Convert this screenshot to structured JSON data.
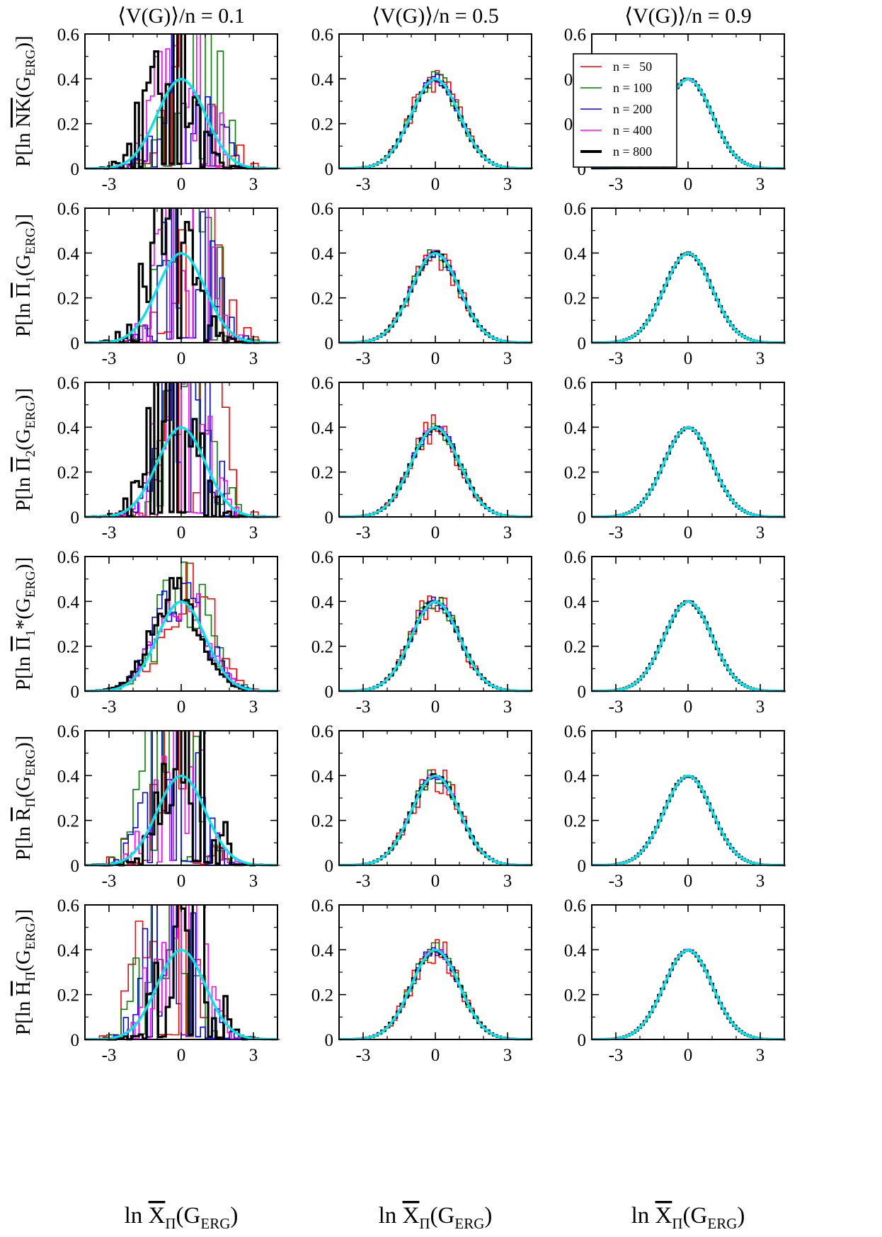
{
  "figure": {
    "column_titles": [
      "⟨V(G)⟩/n = 0.1",
      "⟨V(G)⟩/n = 0.5",
      "⟨V(G)⟩/n = 0.9"
    ],
    "row_labels": [
      {
        "pre": "P[ln ",
        "sym": "NK",
        "sub": "",
        "post": "(G",
        "gsub": "ERG",
        "end": ")]"
      },
      {
        "pre": "P[ln ",
        "sym": "Π",
        "sub": "1",
        "post": "(G",
        "gsub": "ERG",
        "end": ")]"
      },
      {
        "pre": "P[ln ",
        "sym": "Π",
        "sub": "2",
        "post": "(G",
        "gsub": "ERG",
        "end": ")]"
      },
      {
        "pre": "P[ln ",
        "sym": "Π",
        "sub": "1",
        "post": "*(G",
        "gsub": "ERG",
        "end": ")]"
      },
      {
        "pre": "P[ln ",
        "sym": "R",
        "sub": "Π",
        "post": "(G",
        "gsub": "ERG",
        "end": ")]"
      },
      {
        "pre": "P[ln ",
        "sym": "H",
        "sub": "Π",
        "post": "(G",
        "gsub": "ERG",
        "end": ")]"
      }
    ],
    "xlabel": {
      "pre": "ln ",
      "sym": "X",
      "sub": "Π",
      "post": "(G",
      "gsub": "ERG",
      "end": ")"
    }
  },
  "chart_data": {
    "type": "bar",
    "layout": {
      "rows": 6,
      "cols": 3
    },
    "xlim": [
      -4,
      4
    ],
    "ylim": [
      0,
      0.6
    ],
    "xticks": [
      -3,
      0,
      3
    ],
    "xtick_labels": [
      "-3",
      "0",
      "3"
    ],
    "yticks": [
      0,
      0.2,
      0.4,
      0.6
    ],
    "ytick_labels": [
      "0",
      "0.2",
      "0.4",
      "0.6"
    ],
    "grid": false,
    "legend": {
      "panel": "row 1, column 2",
      "placement": "top-right",
      "entries": [
        {
          "label": "n =   50",
          "color": "#ff0000"
        },
        {
          "label": "n = 100",
          "color": "#008000"
        },
        {
          "label": "n = 200",
          "color": "#0000ff"
        },
        {
          "label": "n = 400",
          "color": "#ff00ff"
        },
        {
          "label": "n = 800",
          "color": "#000000"
        }
      ]
    },
    "series_colors": {
      "n50": "#ff0000",
      "n100": "#008000",
      "n200": "#0000ff",
      "n400": "#ff00ff",
      "n800": "#000000",
      "gaussian": "#00e5ee"
    },
    "reference_curve": {
      "type": "standard normal density",
      "mean": 0,
      "sd": 1,
      "peak": 0.399,
      "color": "#00e5ee"
    },
    "column_titles": [
      "⟨V(G)⟩/n = 0.1",
      "⟨V(G)⟩/n = 0.5",
      "⟨V(G)⟩/n = 0.9"
    ]
  }
}
